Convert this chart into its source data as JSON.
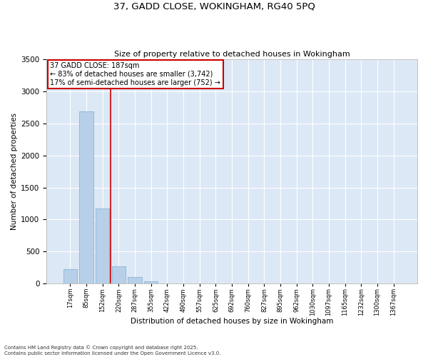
{
  "title1": "37, GADD CLOSE, WOKINGHAM, RG40 5PQ",
  "title2": "Size of property relative to detached houses in Wokingham",
  "xlabel": "Distribution of detached houses by size in Wokingham",
  "ylabel": "Number of detached properties",
  "bar_color": "#b8cfe8",
  "bar_edge_color": "#7aadd4",
  "background_color": "#dce8f5",
  "grid_color": "#ffffff",
  "fig_background": "#ffffff",
  "categories": [
    "17sqm",
    "85sqm",
    "152sqm",
    "220sqm",
    "287sqm",
    "355sqm",
    "422sqm",
    "490sqm",
    "557sqm",
    "625sqm",
    "692sqm",
    "760sqm",
    "827sqm",
    "895sqm",
    "962sqm",
    "1030sqm",
    "1097sqm",
    "1165sqm",
    "1232sqm",
    "1300sqm",
    "1367sqm"
  ],
  "values": [
    230,
    2680,
    1170,
    270,
    100,
    35,
    0,
    0,
    0,
    0,
    0,
    0,
    0,
    0,
    0,
    0,
    0,
    0,
    0,
    0,
    0
  ],
  "vline_pos": 2.5,
  "vline_color": "#cc0000",
  "annotation_text": "37 GADD CLOSE: 187sqm\n← 83% of detached houses are smaller (3,742)\n17% of semi-detached houses are larger (752) →",
  "annotation_box_color": "#cc0000",
  "ylim": [
    0,
    3500
  ],
  "yticks": [
    0,
    500,
    1000,
    1500,
    2000,
    2500,
    3000,
    3500
  ],
  "footnote1": "Contains HM Land Registry data © Crown copyright and database right 2025.",
  "footnote2": "Contains public sector information licensed under the Open Government Licence v3.0."
}
